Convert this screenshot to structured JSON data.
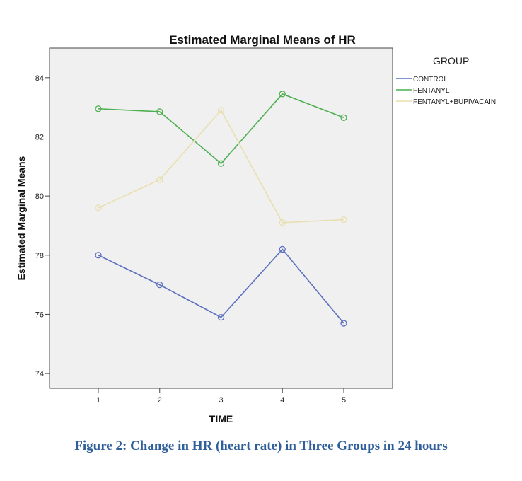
{
  "chart_data": {
    "type": "line",
    "title": "Estimated Marginal Means of HR",
    "xlabel": "TIME",
    "ylabel": "Estimated Marginal Means",
    "categories": [
      "1",
      "2",
      "3",
      "4",
      "5"
    ],
    "ylim": [
      73.5,
      85
    ],
    "yticks": [
      74,
      76,
      78,
      80,
      82,
      84
    ],
    "grid": false,
    "legend": {
      "title": "GROUP",
      "placement": "right"
    },
    "series": [
      {
        "name": "CONTROL",
        "color": "#5b6fbf",
        "values": [
          78.0,
          77.0,
          75.9,
          78.2,
          75.7
        ]
      },
      {
        "name": "FENTANYL",
        "color": "#4caf50",
        "values": [
          82.95,
          82.85,
          81.1,
          83.45,
          82.65
        ]
      },
      {
        "name": "FENTANYL+BUPIVACAIN",
        "color": "#e8dfb0",
        "values": [
          79.6,
          80.55,
          82.9,
          79.1,
          79.2
        ]
      }
    ]
  },
  "caption": "Figure 2: Change in HR (heart rate) in Three Groups in 24 hours"
}
